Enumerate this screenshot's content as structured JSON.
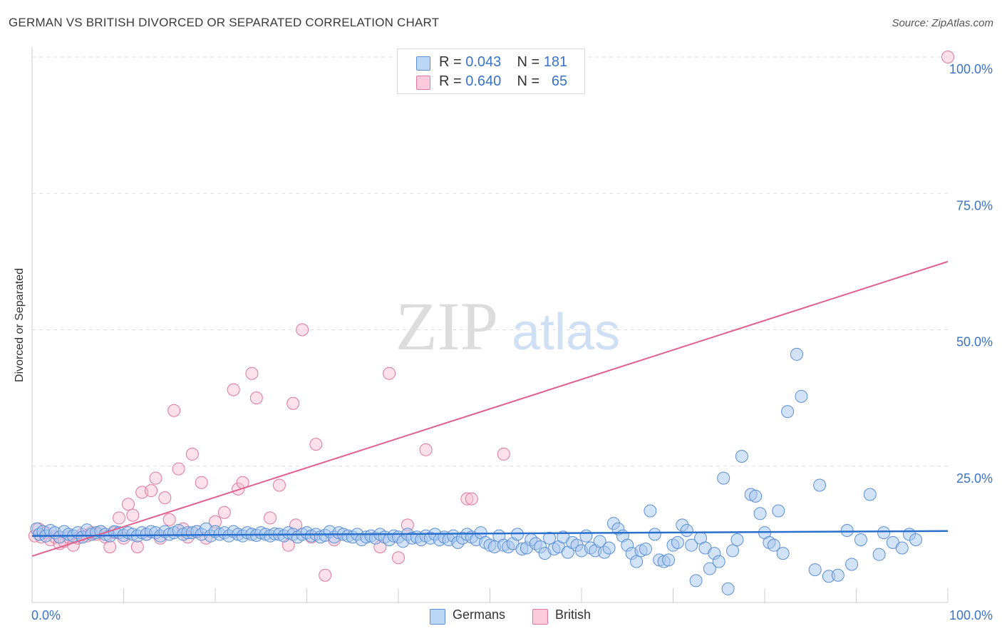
{
  "title": "GERMAN VS BRITISH DIVORCED OR SEPARATED CORRELATION CHART",
  "source": "Source: ZipAtlas.com",
  "watermark": {
    "zip": "ZIP",
    "atlas": "atlas"
  },
  "colors": {
    "german_fill": "#a8c8f0",
    "german_stroke": "#5a8fd6",
    "german_line": "#2a6fcc",
    "british_fill": "#f8bcd0",
    "british_stroke": "#e07898",
    "british_line": "#e0608a",
    "tick_label": "#3a73c6",
    "grid": "#dddddd"
  },
  "legend": {
    "rows": [
      {
        "r_label": "R = ",
        "r_value": "0.043",
        "n_label": "N = ",
        "n_value": "181"
      },
      {
        "r_label": "R = ",
        "r_value": "0.640",
        "n_label": "N = ",
        "n_value": "65"
      }
    ]
  },
  "bottom_legend": {
    "germans": "Germans",
    "british": "British"
  },
  "chart_data": {
    "type": "scatter",
    "title": "GERMAN VS BRITISH DIVORCED OR SEPARATED CORRELATION CHART",
    "xlabel": "",
    "ylabel": "Divorced or Separated",
    "xlim": [
      0,
      100
    ],
    "ylim": [
      0,
      100
    ],
    "x_tick_labels": [
      "0.0%",
      "100.0%"
    ],
    "y_ticks": [
      25,
      50,
      75,
      100
    ],
    "y_tick_labels": [
      "25.0%",
      "50.0%",
      "75.0%",
      "100.0%"
    ],
    "grid": "horizontal dashed",
    "legend_placement": "top-center and bottom",
    "series": [
      {
        "name": "Germans",
        "r": 0.043,
        "n": 181,
        "trend": {
          "x": [
            0,
            100
          ],
          "y": [
            12.2,
            13.1
          ]
        },
        "points": [
          [
            0.5,
            13.5
          ],
          [
            0.8,
            12.5
          ],
          [
            1.2,
            13.0
          ],
          [
            1.5,
            12.2
          ],
          [
            2.0,
            13.2
          ],
          [
            2.5,
            12.8
          ],
          [
            3.0,
            12.0
          ],
          [
            3.5,
            13.0
          ],
          [
            4.0,
            12.5
          ],
          [
            4.5,
            12.2
          ],
          [
            5.0,
            12.8
          ],
          [
            5.5,
            12.0
          ],
          [
            6.0,
            13.3
          ],
          [
            6.5,
            12.5
          ],
          [
            7.0,
            12.8
          ],
          [
            7.5,
            13.0
          ],
          [
            8.0,
            12.5
          ],
          [
            8.5,
            12.2
          ],
          [
            9.0,
            13.0
          ],
          [
            9.5,
            12.8
          ],
          [
            10.0,
            12.3
          ],
          [
            10.5,
            12.8
          ],
          [
            11.0,
            12.5
          ],
          [
            11.5,
            12.2
          ],
          [
            12.0,
            12.8
          ],
          [
            12.5,
            12.5
          ],
          [
            13.0,
            13.0
          ],
          [
            13.5,
            12.8
          ],
          [
            14.0,
            12.2
          ],
          [
            14.5,
            13.0
          ],
          [
            15.0,
            12.5
          ],
          [
            15.5,
            12.8
          ],
          [
            16.0,
            13.2
          ],
          [
            16.5,
            12.5
          ],
          [
            17.0,
            12.8
          ],
          [
            17.5,
            12.8
          ],
          [
            18.0,
            13.0
          ],
          [
            18.5,
            12.5
          ],
          [
            19.0,
            13.5
          ],
          [
            19.5,
            12.2
          ],
          [
            20.0,
            13.0
          ],
          [
            20.5,
            12.5
          ],
          [
            21.0,
            12.8
          ],
          [
            21.5,
            12.2
          ],
          [
            22.0,
            13.0
          ],
          [
            22.5,
            12.5
          ],
          [
            23.0,
            12.2
          ],
          [
            23.5,
            12.8
          ],
          [
            24.0,
            12.5
          ],
          [
            24.5,
            12.3
          ],
          [
            25.0,
            12.8
          ],
          [
            25.5,
            12.5
          ],
          [
            26.0,
            12.2
          ],
          [
            26.5,
            12.6
          ],
          [
            27.0,
            12.5
          ],
          [
            27.5,
            12.2
          ],
          [
            28.0,
            12.8
          ],
          [
            28.5,
            12.5
          ],
          [
            29.0,
            12.0
          ],
          [
            29.5,
            12.5
          ],
          [
            30.0,
            12.8
          ],
          [
            30.5,
            12.2
          ],
          [
            31.0,
            12.5
          ],
          [
            31.5,
            12.0
          ],
          [
            32.0,
            12.3
          ],
          [
            32.5,
            13.0
          ],
          [
            33.0,
            12.0
          ],
          [
            33.5,
            12.8
          ],
          [
            34.0,
            12.5
          ],
          [
            34.5,
            12.2
          ],
          [
            35.0,
            12.0
          ],
          [
            35.5,
            12.5
          ],
          [
            36.0,
            11.5
          ],
          [
            36.5,
            12.0
          ],
          [
            37.0,
            12.2
          ],
          [
            37.5,
            11.8
          ],
          [
            38.0,
            12.5
          ],
          [
            38.5,
            12.0
          ],
          [
            39.0,
            11.5
          ],
          [
            39.5,
            12.2
          ],
          [
            40.0,
            12.0
          ],
          [
            40.5,
            11.2
          ],
          [
            41.0,
            12.5
          ],
          [
            41.5,
            11.8
          ],
          [
            42.0,
            12.0
          ],
          [
            42.5,
            11.5
          ],
          [
            43.0,
            12.2
          ],
          [
            43.5,
            11.8
          ],
          [
            44.0,
            12.5
          ],
          [
            44.5,
            11.5
          ],
          [
            45.0,
            12.0
          ],
          [
            45.5,
            11.5
          ],
          [
            46.0,
            12.2
          ],
          [
            46.5,
            11.0
          ],
          [
            47.0,
            11.8
          ],
          [
            47.5,
            12.5
          ],
          [
            48.0,
            12.0
          ],
          [
            48.5,
            11.5
          ],
          [
            49.0,
            12.8
          ],
          [
            49.5,
            11.0
          ],
          [
            50.0,
            10.5
          ],
          [
            50.5,
            10.2
          ],
          [
            51.0,
            12.2
          ],
          [
            51.5,
            10.5
          ],
          [
            52.0,
            10.2
          ],
          [
            52.5,
            10.8
          ],
          [
            53.0,
            12.5
          ],
          [
            53.5,
            9.8
          ],
          [
            54.0,
            10.0
          ],
          [
            54.5,
            11.5
          ],
          [
            55.0,
            10.8
          ],
          [
            55.5,
            10.2
          ],
          [
            56.0,
            9.0
          ],
          [
            56.5,
            11.8
          ],
          [
            57.0,
            9.8
          ],
          [
            57.5,
            10.2
          ],
          [
            58.0,
            12.0
          ],
          [
            58.5,
            9.2
          ],
          [
            59.0,
            11.0
          ],
          [
            59.5,
            10.5
          ],
          [
            60.0,
            9.5
          ],
          [
            60.5,
            12.2
          ],
          [
            61.0,
            10.0
          ],
          [
            61.5,
            9.5
          ],
          [
            62.0,
            11.2
          ],
          [
            62.5,
            9.2
          ],
          [
            63.0,
            10.0
          ],
          [
            63.5,
            14.5
          ],
          [
            64.0,
            13.5
          ],
          [
            64.5,
            12.2
          ],
          [
            65.0,
            10.5
          ],
          [
            65.5,
            9.0
          ],
          [
            66.0,
            7.5
          ],
          [
            66.5,
            9.5
          ],
          [
            67.0,
            9.8
          ],
          [
            67.5,
            16.8
          ],
          [
            68.0,
            12.5
          ],
          [
            68.5,
            7.8
          ],
          [
            69.0,
            7.5
          ],
          [
            69.5,
            7.8
          ],
          [
            70.0,
            10.5
          ],
          [
            70.5,
            11.0
          ],
          [
            71.0,
            14.2
          ],
          [
            71.5,
            13.2
          ],
          [
            72.0,
            10.5
          ],
          [
            72.5,
            4.0
          ],
          [
            73.0,
            11.8
          ],
          [
            73.5,
            10.0
          ],
          [
            74.0,
            6.2
          ],
          [
            74.5,
            9.0
          ],
          [
            75.0,
            7.5
          ],
          [
            75.5,
            22.8
          ],
          [
            76.0,
            2.5
          ],
          [
            76.5,
            9.5
          ],
          [
            77.0,
            11.5
          ],
          [
            77.5,
            26.8
          ],
          [
            78.5,
            19.8
          ],
          [
            79.0,
            19.5
          ],
          [
            79.5,
            16.3
          ],
          [
            80.0,
            12.8
          ],
          [
            80.5,
            11.0
          ],
          [
            81.0,
            10.5
          ],
          [
            81.5,
            16.8
          ],
          [
            82.0,
            9.0
          ],
          [
            82.5,
            35.0
          ],
          [
            83.5,
            45.5
          ],
          [
            84.0,
            37.8
          ],
          [
            85.5,
            6.0
          ],
          [
            86.0,
            21.5
          ],
          [
            87.0,
            4.8
          ],
          [
            88.0,
            5.0
          ],
          [
            89.0,
            13.2
          ],
          [
            89.5,
            7.0
          ],
          [
            90.5,
            11.5
          ],
          [
            91.5,
            19.8
          ],
          [
            92.5,
            8.8
          ],
          [
            93.0,
            12.8
          ],
          [
            94.0,
            11.0
          ],
          [
            95.0,
            10.0
          ],
          [
            95.8,
            12.5
          ],
          [
            96.5,
            11.5
          ]
        ]
      },
      {
        "name": "British",
        "r": 0.64,
        "n": 65,
        "trend": {
          "x": [
            0,
            100
          ],
          "y": [
            8.5,
            62.5
          ]
        },
        "points": [
          [
            0.3,
            12.2
          ],
          [
            0.7,
            13.5
          ],
          [
            1.0,
            12.0
          ],
          [
            1.5,
            12.8
          ],
          [
            2.0,
            11.5
          ],
          [
            2.5,
            12.0
          ],
          [
            3.0,
            10.8
          ],
          [
            3.5,
            11.2
          ],
          [
            4.0,
            12.0
          ],
          [
            4.5,
            10.5
          ],
          [
            5.0,
            11.8
          ],
          [
            5.5,
            12.5
          ],
          [
            6.0,
            12.2
          ],
          [
            6.5,
            12.8
          ],
          [
            7.0,
            12.5
          ],
          [
            7.5,
            13.0
          ],
          [
            8.0,
            12.0
          ],
          [
            8.5,
            10.2
          ],
          [
            9.0,
            12.8
          ],
          [
            9.5,
            15.5
          ],
          [
            10.0,
            11.8
          ],
          [
            10.5,
            18.0
          ],
          [
            11.0,
            16.0
          ],
          [
            11.5,
            10.2
          ],
          [
            12.0,
            20.2
          ],
          [
            12.5,
            12.5
          ],
          [
            13.0,
            20.5
          ],
          [
            13.5,
            22.8
          ],
          [
            14.0,
            11.8
          ],
          [
            14.5,
            19.2
          ],
          [
            15.0,
            15.2
          ],
          [
            15.5,
            35.2
          ],
          [
            16.0,
            24.5
          ],
          [
            16.5,
            13.5
          ],
          [
            17.0,
            12.0
          ],
          [
            17.5,
            27.2
          ],
          [
            18.0,
            13.0
          ],
          [
            18.5,
            22.0
          ],
          [
            19.0,
            11.8
          ],
          [
            20.0,
            14.8
          ],
          [
            21.0,
            16.5
          ],
          [
            22.0,
            39.0
          ],
          [
            22.5,
            20.8
          ],
          [
            23.0,
            22.0
          ],
          [
            24.0,
            42.0
          ],
          [
            24.5,
            37.5
          ],
          [
            26.0,
            15.5
          ],
          [
            27.0,
            21.5
          ],
          [
            28.0,
            10.5
          ],
          [
            28.5,
            36.5
          ],
          [
            28.8,
            14.2
          ],
          [
            29.5,
            50.0
          ],
          [
            30.5,
            12.0
          ],
          [
            31.0,
            29.0
          ],
          [
            32.0,
            5.0
          ],
          [
            38.0,
            10.2
          ],
          [
            39.0,
            42.0
          ],
          [
            40.0,
            8.2
          ],
          [
            41.0,
            14.2
          ],
          [
            43.0,
            28.0
          ],
          [
            47.5,
            19.0
          ],
          [
            48.0,
            19.0
          ],
          [
            51.5,
            27.2
          ],
          [
            33.0,
            11.5
          ],
          [
            100.0,
            100.0
          ]
        ]
      }
    ]
  }
}
